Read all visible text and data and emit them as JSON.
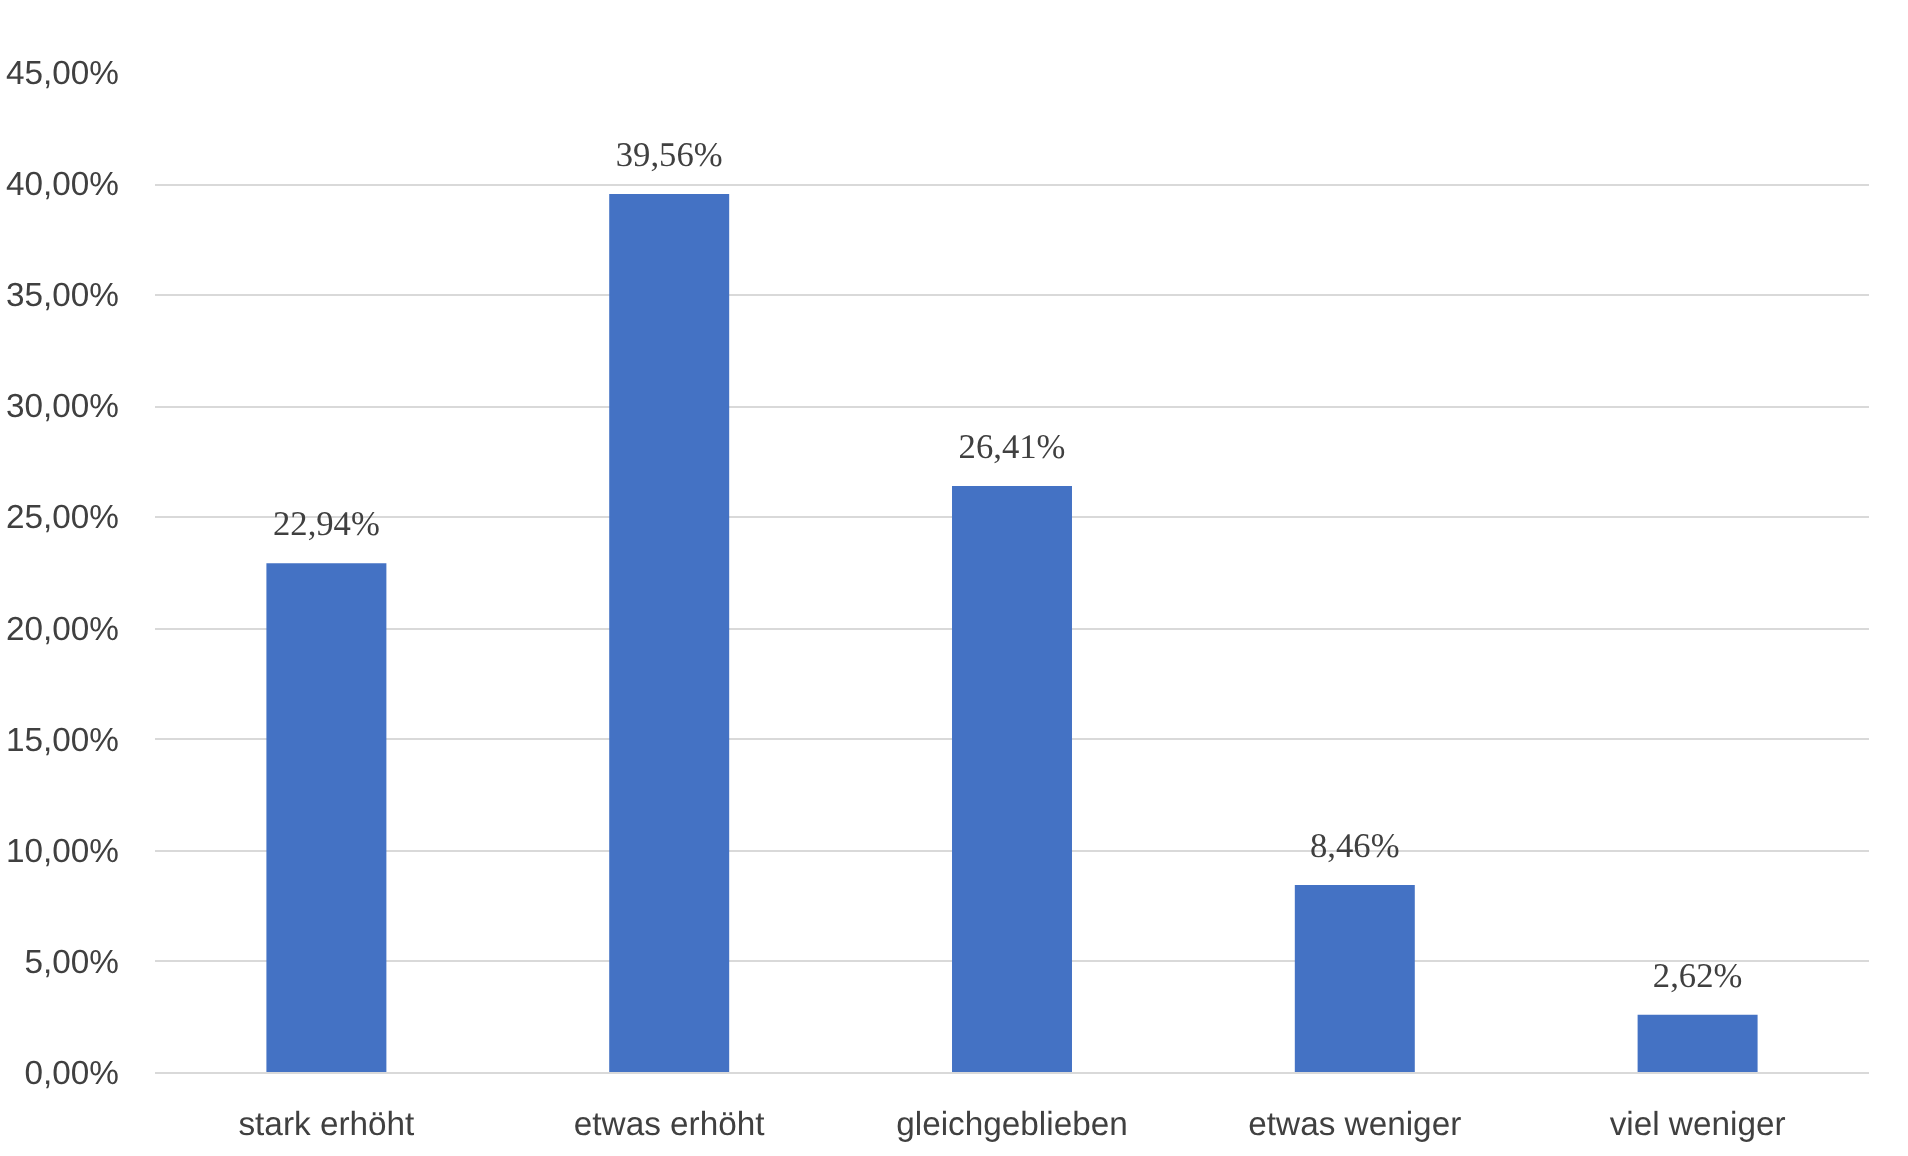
{
  "chart_data": {
    "type": "bar",
    "categories": [
      "stark erhöht",
      "etwas erhöht",
      "gleichgeblieben",
      "etwas weniger",
      "viel weniger"
    ],
    "values": [
      22.94,
      39.56,
      26.41,
      8.46,
      2.62
    ],
    "value_labels": [
      "22,94%",
      "39,56%",
      "26,41%",
      "8,46%",
      "2,62%"
    ],
    "color": "#4472c4",
    "ylim": [
      0,
      45
    ],
    "yticks": [
      {
        "value": 0,
        "label": "0,00%"
      },
      {
        "value": 5,
        "label": "5,00%"
      },
      {
        "value": 10,
        "label": "10,00%"
      },
      {
        "value": 15,
        "label": "15,00%"
      },
      {
        "value": 20,
        "label": "20,00%"
      },
      {
        "value": 25,
        "label": "25,00%"
      },
      {
        "value": 30,
        "label": "30,00%"
      },
      {
        "value": 35,
        "label": "35,00%"
      },
      {
        "value": 40,
        "label": "40,00%"
      },
      {
        "value": 45,
        "label": "45,00%"
      }
    ],
    "grid": "y"
  }
}
